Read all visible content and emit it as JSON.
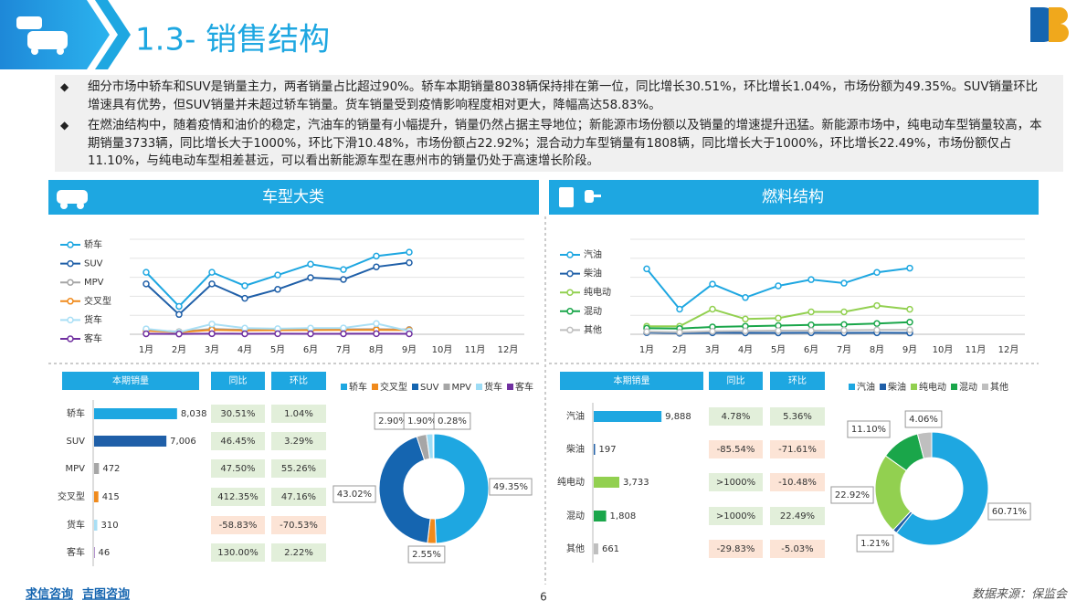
{
  "header": {
    "title": "1.3- 销售结构"
  },
  "bullets": [
    "细分市场中轿车和SUV是销量主力，两者销量占比超过90%。轿车本期销量8038辆保持排在第一位，同比增长30.51%，环比增长1.04%，市场份额为49.35%。SUV销量环比增速具有优势，但SUV销量并未超过轿车销量。货车销量受到疫情影响程度相对更大，降幅高达58.83%。",
    "在燃油结构中，随着疫情和油价的稳定，汽油车的销量有小幅提升，销量仍然占据主导地位；新能源市场份额以及销量的增速提升迅猛。新能源市场中，纯电动车型销量较高，本期销量3733辆，同比增长大于1000%，环比下滑10.48%，市场份额占22.92%；混合动力车型销量有1808辆，同比增长大于1000%，环比增长22.49%，市场份额仅占11.10%，与纯电动车型相差甚远，可以看出新能源车型在惠州市的销量仍处于高速增长阶段。"
  ],
  "panels": [
    "车型大类",
    "燃料结构"
  ],
  "tables": [
    {
      "headers": [
        "本期销量",
        "同比",
        "环比"
      ],
      "yoy": [
        "30.51%",
        "46.45%",
        "47.50%",
        "412.35%",
        "-58.83%",
        "130.00%"
      ],
      "mom": [
        "1.04%",
        "3.29%",
        "55.26%",
        "47.16%",
        "-70.53%",
        "2.22%"
      ]
    },
    {
      "headers": [
        "本期销量",
        "同比",
        "环比"
      ],
      "yoy": [
        "4.78%",
        "-85.54%",
        ">1000%",
        ">1000%",
        "-29.83%"
      ],
      "mom": [
        "5.36%",
        "-71.61%",
        "-10.48%",
        "22.49%",
        "-5.03%"
      ]
    }
  ],
  "footer": {
    "brands": [
      "求信咨询",
      "吉图咨询"
    ],
    "page": "6",
    "source": "数据来源：保监会"
  },
  "chart_data": [
    {
      "type": "line",
      "categories": [
        "1月",
        "2月",
        "3月",
        "4月",
        "5月",
        "6月",
        "7月",
        "8月",
        "9月",
        "10月",
        "11月",
        "12月"
      ],
      "ylim": [
        0,
        9300
      ],
      "series": [
        {
          "name": "轿车",
          "color": "#1ea7e1",
          "values": [
            6070,
            2730,
            6070,
            4750,
            5800,
            6860,
            6340,
            7660,
            8038,
            null,
            null,
            null
          ]
        },
        {
          "name": "SUV",
          "color": "#1f5fa8",
          "values": [
            4930,
            1940,
            4930,
            3520,
            4400,
            5540,
            5370,
            6600,
            7006,
            null,
            null,
            null
          ]
        },
        {
          "name": "MPV",
          "color": "#a6a6a6",
          "values": [
            430,
            250,
            520,
            430,
            470,
            480,
            490,
            500,
            472,
            null,
            null,
            null
          ]
        },
        {
          "name": "交叉型",
          "color": "#f08a1c",
          "values": [
            350,
            200,
            420,
            380,
            400,
            410,
            420,
            430,
            415,
            null,
            null,
            null
          ]
        },
        {
          "name": "货车",
          "color": "#a9dff5",
          "values": [
            530,
            200,
            1000,
            600,
            550,
            600,
            620,
            1050,
            310,
            null,
            null,
            null
          ]
        },
        {
          "name": "客车",
          "color": "#7030a0",
          "values": [
            50,
            30,
            60,
            50,
            55,
            50,
            50,
            55,
            46,
            null,
            null,
            null
          ]
        }
      ]
    },
    {
      "type": "line",
      "categories": [
        "1月",
        "2月",
        "3月",
        "4月",
        "5月",
        "6月",
        "7月",
        "8月",
        "9月",
        "10月",
        "11月",
        "12月"
      ],
      "ylim": [
        0,
        14200
      ],
      "series": [
        {
          "name": "汽油",
          "color": "#1ea7e1",
          "values": [
            9780,
            3750,
            7500,
            5490,
            7240,
            8170,
            7640,
            9250,
            9888,
            null,
            null,
            null
          ]
        },
        {
          "name": "柴油",
          "color": "#1f5fa8",
          "values": [
            250,
            150,
            220,
            200,
            210,
            220,
            200,
            230,
            197,
            null,
            null,
            null
          ]
        },
        {
          "name": "纯电动",
          "color": "#92d050",
          "values": [
            1200,
            1200,
            3750,
            2280,
            2410,
            3350,
            3350,
            4290,
            3733,
            null,
            null,
            null
          ]
        },
        {
          "name": "混动",
          "color": "#1aa64a",
          "values": [
            900,
            850,
            1100,
            1200,
            1300,
            1400,
            1450,
            1600,
            1808,
            null,
            null,
            null
          ]
        },
        {
          "name": "其他",
          "color": "#bfbfbf",
          "values": [
            400,
            300,
            450,
            500,
            550,
            550,
            600,
            650,
            661,
            null,
            null,
            null
          ]
        }
      ]
    },
    {
      "type": "bar",
      "categories": [
        "轿车",
        "SUV",
        "MPV",
        "交叉型",
        "货车",
        "客车"
      ],
      "values": [
        8038,
        7006,
        472,
        415,
        310,
        46
      ],
      "value_labels": [
        "8,038",
        "7,006",
        "472",
        "415",
        "310",
        "46"
      ],
      "xlim": [
        0,
        10000
      ],
      "colors": [
        "#1ea7e1",
        "#1f5fa8",
        "#a6a6a6",
        "#f08a1c",
        "#a9dff5",
        "#7030a0"
      ]
    },
    {
      "type": "bar",
      "categories": [
        "汽油",
        "柴油",
        "纯电动",
        "混动",
        "其他"
      ],
      "values": [
        9888,
        197,
        3733,
        1808,
        661
      ],
      "value_labels": [
        "9,888",
        "197",
        "3,733",
        "1,808",
        "661"
      ],
      "xlim": [
        0,
        10000
      ],
      "colors": [
        "#1ea7e1",
        "#1f5fa8",
        "#92d050",
        "#1aa64a",
        "#bfbfbf"
      ]
    },
    {
      "type": "pie",
      "categories": [
        "轿车",
        "交叉型",
        "SUV",
        "MPV",
        "货车",
        "客车"
      ],
      "values": [
        49.35,
        2.55,
        43.02,
        2.9,
        1.9,
        0.28
      ],
      "value_labels": [
        "49.35%",
        "2.55%",
        "43.02%",
        "2.90%",
        "1.90%",
        "0.28%"
      ],
      "colors": [
        "#1ea7e1",
        "#f08a1c",
        "#1565b0",
        "#a6a6a6",
        "#9ddcf5",
        "#7030a0"
      ]
    },
    {
      "type": "pie",
      "categories": [
        "汽油",
        "柴油",
        "纯电动",
        "混动",
        "其他"
      ],
      "values": [
        60.71,
        1.21,
        22.92,
        11.1,
        4.06
      ],
      "value_labels": [
        "60.71%",
        "1.21%",
        "22.92%",
        "11.10%",
        "4.06%"
      ],
      "colors": [
        "#1ea7e1",
        "#1f5fa8",
        "#92d050",
        "#1aa64a",
        "#bfbfbf"
      ]
    }
  ]
}
